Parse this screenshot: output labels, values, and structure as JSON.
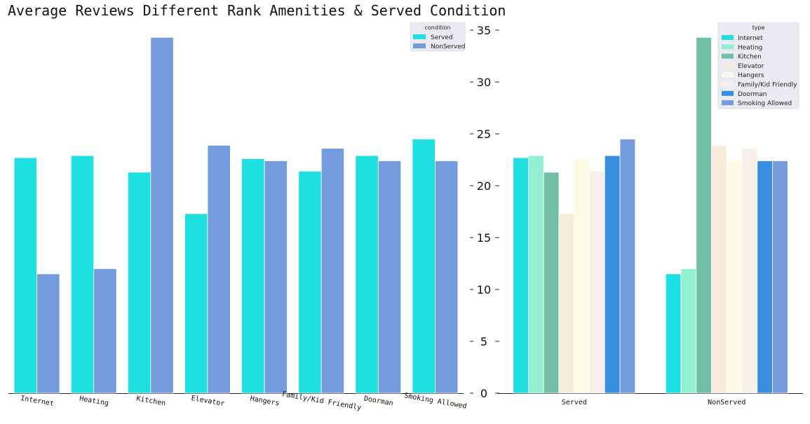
{
  "title": "Average Reviews Different Rank Amenities & Served Condition",
  "chart_data": [
    {
      "type": "bar",
      "categories": [
        "Internet",
        "Heating",
        "Kitchen",
        "Elevator",
        "Hangers",
        "Family/Kid Friendly",
        "Doorman",
        "Smoking Allowed"
      ],
      "legend_title": "condition",
      "legend_position": "top-right",
      "series": [
        {
          "name": "Served",
          "color": "#1fe0e0",
          "values": [
            22.7,
            22.9,
            21.3,
            17.3,
            22.6,
            21.4,
            22.9,
            24.5
          ]
        },
        {
          "name": "NonServed",
          "color": "#749bdc",
          "values": [
            11.5,
            12.0,
            34.3,
            23.9,
            22.4,
            23.6,
            22.4,
            22.4
          ]
        }
      ],
      "ylim": [
        0,
        35
      ],
      "grid": false
    },
    {
      "type": "bar",
      "categories": [
        "Served",
        "NonServed"
      ],
      "legend_title": "type",
      "legend_position": "top-right",
      "series": [
        {
          "name": "Internet",
          "color": "#1fe0e0",
          "values": [
            22.7,
            11.5
          ]
        },
        {
          "name": "Heating",
          "color": "#92f0d0",
          "values": [
            22.9,
            12.0
          ]
        },
        {
          "name": "Kitchen",
          "color": "#72bfa7",
          "values": [
            21.3,
            34.3
          ]
        },
        {
          "name": "Elevator",
          "color": "#f6ecdc",
          "values": [
            17.3,
            23.9
          ]
        },
        {
          "name": "Hangers",
          "color": "#fbfae4",
          "values": [
            22.6,
            22.4
          ]
        },
        {
          "name": "Family/Kid Friendly",
          "color": "#f9efea",
          "values": [
            21.4,
            23.6
          ]
        },
        {
          "name": "Doorman",
          "color": "#3a8ee2",
          "values": [
            22.9,
            22.4
          ]
        },
        {
          "name": "Smoking Allowed",
          "color": "#749bdc",
          "values": [
            24.5,
            22.4
          ]
        }
      ],
      "yticks": [
        0,
        5,
        10,
        15,
        20,
        25,
        30,
        35
      ],
      "ylim": [
        0,
        35
      ],
      "grid": false
    }
  ]
}
